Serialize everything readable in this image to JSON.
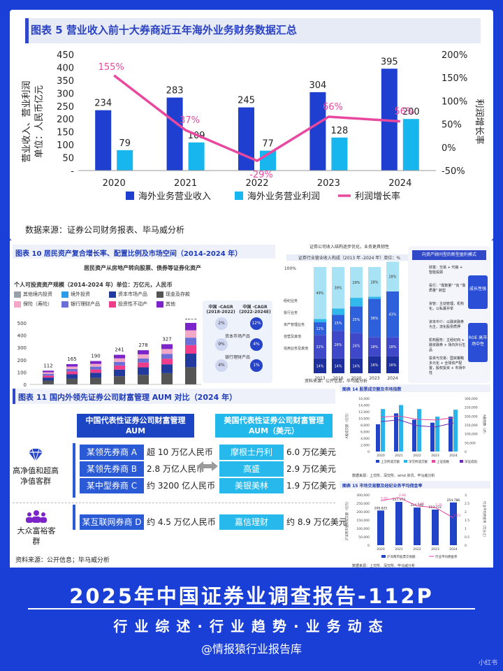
{
  "main_chart": {
    "title": "图表 5 营业收入前十大券商近五年海外业务财务数据汇总",
    "ylabel": "营业收入、营业利润\n单位：人民币亿元",
    "y2label": "利润增长率",
    "source": "数据来源：证券公司财务报表、毕马威分析",
    "chart_data": {
      "type": "bar",
      "categories": [
        "2020",
        "2021",
        "2022",
        "2023",
        "2024"
      ],
      "series": [
        {
          "name": "海外业务营业收入",
          "values": [
            234,
            283,
            245,
            304,
            395
          ],
          "color": "#1f3fd1"
        },
        {
          "name": "海外业务营业利润",
          "values": [
            79,
            109,
            77,
            128,
            200
          ],
          "color": "#17b6ee"
        },
        {
          "name": "利润增长率",
          "type": "line",
          "axis": "right",
          "values": [
            155,
            37,
            -29,
            66,
            56
          ],
          "labels": [
            "155%",
            "37%",
            "-29%",
            "66%",
            "56%"
          ],
          "color": "#e8489e"
        }
      ],
      "yticks": [
        "450",
        "400",
        "350",
        "300",
        "250",
        "200",
        "150",
        "100",
        "50",
        "-"
      ],
      "y2ticks": [
        "200%",
        "150%",
        "100%",
        "50%",
        "0%",
        "-50%"
      ],
      "ylim": [
        0,
        450
      ],
      "y2lim": [
        -50,
        200
      ]
    }
  },
  "fig10": {
    "title": "图表 10 居民资产复合增长率、配置比例及市场空间（2014-2024 年）",
    "subtitle": "居民资产从房地产转向股票、债券等证券化资产",
    "scale": "个人可投资资产规模（2014-2024 年）单位：万亿元，人民币",
    "legend": [
      "其他境内投资",
      "境外投资",
      "资本市场产品",
      "现金及存款",
      "保险（寿险）",
      "银行理财产品",
      "投资性不动产",
      "其他"
    ],
    "legend_colors": [
      "#9aa0aa",
      "#2a9ce8",
      "#223a9e",
      "#555555",
      "#f3a7c7",
      "#6a6fd8",
      "#ef3d8b",
      "#7a24c9"
    ],
    "chart_data": {
      "type": "bar",
      "stacked": true,
      "values": [
        112,
        165,
        190,
        241,
        278,
        327,
        1251
      ],
      "yticks": [
        "500",
        "400",
        "300",
        "200",
        "100",
        "0"
      ]
    },
    "cagr_head": [
      "中国 -CAGR (2018-2022)",
      "中国 -CAGR (2022-2024E)"
    ],
    "cagr_rows": [
      {
        "label": "",
        "v1": "2%",
        "v2": "12%"
      },
      {
        "label": "资本市场产品",
        "v1": "9%",
        "v2": "4%"
      },
      {
        "label": "银行理财产品",
        "v1": "4%",
        "v2": "1%"
      }
    ]
  },
  "panel_struct": {
    "title": "证券公司收入结构逐步优化，业务更具韧性",
    "subtitle": "证券行业营业收入构成（2013 年 -2024 年）单位：%",
    "x": [
      "2013",
      "2016",
      "2020",
      "2023",
      "2024"
    ],
    "top_pct": [
      "49%",
      "39%",
      "29%",
      "28%",
      "28%"
    ],
    "pct2": [
      "12%",
      "15%",
      "25%",
      "36%",
      "43%"
    ],
    "pct3": [
      "22%",
      "26%",
      "24%",
      "18%",
      "18%"
    ],
    "bottom_pct": [
      "14%",
      "14%",
      "14%",
      "16%",
      "16%"
    ],
    "legend": [
      "经纪业务",
      "投行业务",
      "资产管理业务",
      "自营及其他",
      "信用业务及其他"
    ],
    "yaxis": "100%",
    "source": "资料来源：公开信息，毕马威分析"
  },
  "panel_model": {
    "title": "向资产顾问型的新型盈利模式",
    "items": [
      "财富：交易 + 代销 + 智能投顾",
      "投行：\"靠数量\" \"向 \"靠质量\" 转型",
      "资管：主动管理，机构化，公私募并举",
      "资本中介：以融资融券为主，流化股票质押",
      "机构服务：主经纪商 + 融资融券 + 场内外衍生品",
      "投资与交易：国资策略多元化 + 全球资产配置，股权投资 + 市场中性"
    ],
    "badges": [
      "成长性强",
      "ROE 高市场中性"
    ]
  },
  "fig11": {
    "title": "图表 11 国内外领先证券公司财富管理 AUM 对比（2024 年）",
    "cn_head": "中国代表性证券公司财富管理 AUM",
    "us_head": "美国代表性证券公司财富管理 AUM（美元）",
    "seg1": "高净值和超高净值客群",
    "seg2": "大众富裕客群",
    "rows": [
      {
        "cn": "某领先券商 A",
        "cn_val": "超 10 万亿人民币",
        "us": "摩根士丹利",
        "us_val": "6.0 万亿美元"
      },
      {
        "cn": "某领先券商 B",
        "cn_val": "2.8 万亿人民币",
        "us": "高盛",
        "us_val": "2.9 万亿美元"
      },
      {
        "cn": "某中型券商 C",
        "cn_val": "约 3200 亿人民币",
        "us": "美银美林",
        "us_val": "1.9 万亿美元"
      },
      {
        "cn": "某互联网券商 D",
        "cn_val": "约 4.5 万亿人民币",
        "us": "嘉信理财",
        "us_val": "约 8.9 万亿美元"
      }
    ],
    "source": "资料来源：公开信息；毕马威分析"
  },
  "fig14": {
    "title": "图表 14 股票成交额及市场指数",
    "chart_data": {
      "type": "bar",
      "x": [
        "2020",
        "2021",
        "2022",
        "2023",
        "2024"
      ],
      "series": [
        {
          "name": "上交所成交额",
          "values": [
            8200,
            11500,
            9600,
            8700,
            10500
          ]
        },
        {
          "name": "深交所成交额",
          "values": [
            12800,
            14000,
            12800,
            10500,
            12600
          ]
        },
        {
          "name": "上证指数",
          "values": [
            3470,
            3640,
            3090,
            2970,
            3350
          ]
        },
        {
          "name": "深证成指",
          "values": [
            0,
            0,
            0,
            0,
            0
          ]
        }
      ],
      "yticks": [
        "16,000",
        "14,000",
        "12,000",
        "10,000",
        "8,000",
        "6,000",
        "4,000",
        "2,000",
        "0"
      ],
      "y2ticks": [
        "300,000",
        "250,000",
        "200,000",
        "150,000",
        "100,000",
        "50,000",
        "0"
      ]
    },
    "ylabel": "A股成交额（亿元）",
    "y2label": "A股指数（点）",
    "legend": [
      "上交所成交额",
      "深交所成交额",
      "上证指数",
      "深证成指"
    ],
    "source": "数据来源：上交所、深交所、wind 资讯、毕马威分析"
  },
  "fig15": {
    "title": "图表 15 市场交易额及经纪业务平均佣金率",
    "chart_data": {
      "type": "bar",
      "x": [
        "2020",
        "2021",
        "2022",
        "2023",
        "2024"
      ],
      "values": [
        206825,
        257973,
        224300,
        212211,
        254786
      ],
      "labels": [
        "206,825",
        "257,973",
        "224,300",
        "212,211",
        "254,786"
      ],
      "rate": [
        2.65,
        2.84,
        2.34,
        2.25,
        1.63
      ],
      "rate_labels": [
        "2.65",
        "2.84",
        "2.34",
        "2.25",
        "1.63"
      ],
      "yticks": [
        "300,000",
        "250,000",
        "200,000",
        "150,000",
        "100,000",
        "50,000",
        "0"
      ],
      "y2ticks": [
        "3",
        "2.5",
        "2",
        "1.5",
        "1",
        "0.5",
        "0"
      ]
    },
    "ylabel": "沪深两市股票成交额（亿元）",
    "y2label": "行业平均佣金率（万分之）",
    "legend": [
      "沪深两市股票交易额",
      "行业平均佣金率"
    ],
    "source": "数据来源：上交所、深交所、毕马威分析"
  },
  "banner": {
    "title": "2025年中国证券业调查报告-112P",
    "subtitle": "行业综述·行业趋势·业务动态",
    "account": "@情报猿行业报告库",
    "watermark": "小红书"
  }
}
